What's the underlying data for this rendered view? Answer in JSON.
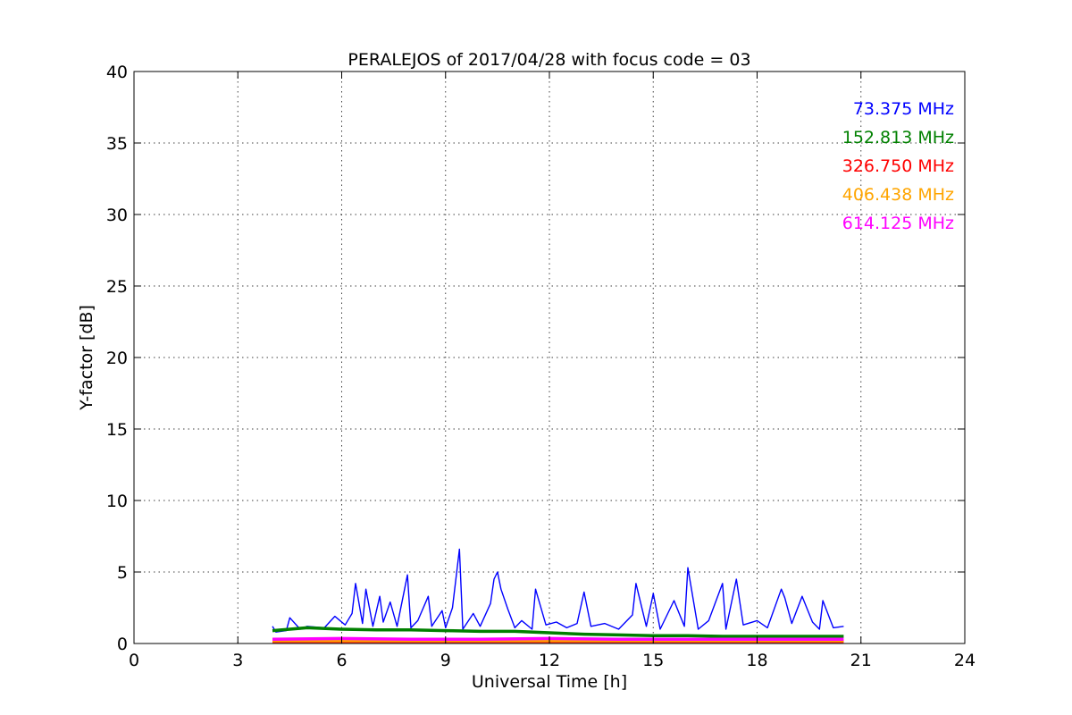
{
  "chart_data": {
    "type": "line",
    "title": "PERALEJOS of 2017/04/28 with focus code = 03",
    "xlabel": "Universal Time [h]",
    "ylabel": "Y-factor [dB]",
    "xlim": [
      0,
      24
    ],
    "ylim": [
      0,
      40
    ],
    "xticks": [
      0,
      3,
      6,
      9,
      12,
      15,
      18,
      21,
      24
    ],
    "yticks": [
      0,
      5,
      10,
      15,
      20,
      25,
      30,
      35,
      40
    ],
    "grid": true,
    "legend_placement": "top-right",
    "series": [
      {
        "name": "73.375 MHz",
        "color": "#0000ff",
        "x": [
          4.0,
          4.1,
          4.4,
          4.5,
          4.8,
          5.0,
          5.5,
          5.8,
          6.1,
          6.3,
          6.4,
          6.6,
          6.7,
          6.9,
          7.1,
          7.2,
          7.4,
          7.6,
          7.9,
          8.0,
          8.2,
          8.5,
          8.6,
          8.9,
          9.0,
          9.2,
          9.4,
          9.5,
          9.8,
          10.0,
          10.3,
          10.4,
          10.5,
          10.6,
          10.8,
          11.0,
          11.2,
          11.5,
          11.6,
          11.9,
          12.2,
          12.5,
          12.8,
          13.0,
          13.2,
          13.6,
          14.0,
          14.4,
          14.5,
          14.8,
          15.0,
          15.2,
          15.6,
          15.9,
          16.0,
          16.3,
          16.6,
          17.0,
          17.1,
          17.4,
          17.6,
          18.0,
          18.3,
          18.7,
          18.8,
          19.0,
          19.3,
          19.6,
          19.8,
          19.9,
          20.2,
          20.5
        ],
        "y": [
          1.2,
          0.8,
          0.9,
          1.8,
          1.0,
          1.2,
          1.1,
          1.9,
          1.3,
          2.1,
          4.2,
          1.4,
          3.8,
          1.2,
          3.3,
          1.5,
          2.9,
          1.2,
          4.8,
          1.1,
          1.6,
          3.3,
          1.2,
          2.3,
          1.1,
          2.5,
          6.6,
          1.0,
          2.1,
          1.2,
          2.8,
          4.5,
          5.0,
          3.8,
          2.4,
          1.1,
          1.6,
          1.0,
          3.8,
          1.3,
          1.5,
          1.1,
          1.4,
          3.6,
          1.2,
          1.4,
          1.0,
          2.0,
          4.2,
          1.2,
          3.5,
          1.0,
          3.0,
          1.2,
          5.3,
          1.0,
          1.6,
          4.2,
          1.0,
          4.5,
          1.3,
          1.6,
          1.1,
          3.8,
          3.2,
          1.4,
          3.3,
          1.5,
          1.0,
          3.0,
          1.1,
          1.2
        ]
      },
      {
        "name": "152.813 MHz",
        "color": "#008000",
        "x": [
          4.0,
          5.0,
          6.0,
          7.0,
          8.0,
          9.0,
          10.0,
          11.0,
          12.0,
          13.0,
          14.0,
          15.0,
          16.0,
          17.0,
          18.0,
          19.0,
          20.0,
          20.5
        ],
        "y": [
          0.9,
          1.1,
          1.0,
          0.95,
          0.95,
          0.9,
          0.85,
          0.85,
          0.75,
          0.65,
          0.6,
          0.55,
          0.55,
          0.5,
          0.5,
          0.5,
          0.5,
          0.5
        ]
      },
      {
        "name": "326.750 MHz",
        "color": "#ff0000",
        "x": [
          4.0,
          8.0,
          12.0,
          16.0,
          20.5
        ],
        "y": [
          0.15,
          0.15,
          0.15,
          0.15,
          0.15
        ]
      },
      {
        "name": "406.438 MHz",
        "color": "#ffa500",
        "x": [
          4.0,
          8.0,
          12.0,
          16.0,
          20.5
        ],
        "y": [
          0.2,
          0.2,
          0.2,
          0.2,
          0.2
        ]
      },
      {
        "name": "614.125 MHz",
        "color": "#ff00ff",
        "x": [
          4.0,
          6.0,
          8.0,
          10.0,
          12.0,
          14.0,
          16.0,
          18.0,
          20.0,
          20.5
        ],
        "y": [
          0.3,
          0.35,
          0.3,
          0.3,
          0.35,
          0.3,
          0.3,
          0.3,
          0.3,
          0.3
        ]
      }
    ]
  }
}
